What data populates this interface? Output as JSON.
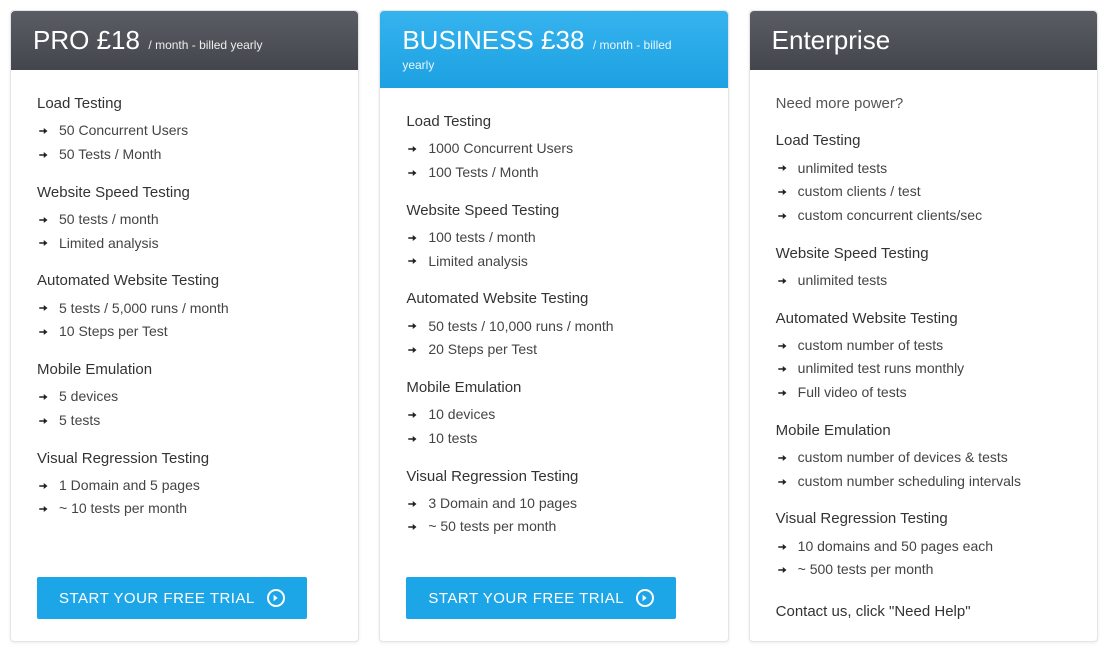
{
  "colors": {
    "header_dark_top": "#5a5d63",
    "header_dark_bottom": "#43464c",
    "header_blue_top": "#35b3ee",
    "header_blue_bottom": "#1da1e2",
    "button_bg": "#1ca6e8",
    "text_primary": "#333333",
    "text_muted": "#555555",
    "card_border": "#e5e5e5"
  },
  "cta_label": "START YOUR FREE TRIAL",
  "plans": [
    {
      "id": "pro",
      "title": "PRO £18",
      "subtitle": "/ month - billed yearly",
      "header_style": "dark",
      "has_cta": true,
      "sections": [
        {
          "title": "Load Testing",
          "items": [
            "50 Concurrent Users",
            "50 Tests / Month"
          ]
        },
        {
          "title": "Website Speed Testing",
          "items": [
            "50 tests / month",
            "Limited analysis"
          ]
        },
        {
          "title": "Automated Website Testing",
          "items": [
            "5 tests / 5,000 runs / month",
            "10 Steps per Test"
          ]
        },
        {
          "title": "Mobile Emulation",
          "items": [
            "5 devices",
            "5 tests"
          ]
        },
        {
          "title": "Visual Regression Testing",
          "items": [
            "1 Domain and 5 pages",
            "~ 10 tests per month"
          ]
        }
      ]
    },
    {
      "id": "business",
      "title": "BUSINESS £38",
      "subtitle": "/ month - billed yearly",
      "header_style": "blue",
      "has_cta": true,
      "sections": [
        {
          "title": "Load Testing",
          "items": [
            "1000 Concurrent Users",
            "100 Tests / Month"
          ]
        },
        {
          "title": "Website Speed Testing",
          "items": [
            "100 tests / month",
            "Limited analysis"
          ]
        },
        {
          "title": "Automated Website Testing",
          "items": [
            "50 tests / 10,000 runs / month",
            "20 Steps per Test"
          ]
        },
        {
          "title": "Mobile Emulation",
          "items": [
            "10 devices",
            "10 tests"
          ]
        },
        {
          "title": "Visual Regression Testing",
          "items": [
            "3 Domain and 10 pages",
            "~ 50 tests per month"
          ]
        }
      ]
    },
    {
      "id": "enterprise",
      "title": "Enterprise",
      "subtitle": "",
      "header_style": "dark",
      "has_cta": false,
      "tagline": "Need more power?",
      "contact_line": "Contact us, click \"Need Help\"",
      "sections": [
        {
          "title": "Load Testing",
          "items": [
            "unlimited tests",
            "custom clients / test",
            "custom concurrent clients/sec"
          ]
        },
        {
          "title": "Website Speed Testing",
          "items": [
            "unlimited tests"
          ]
        },
        {
          "title": "Automated Website Testing",
          "items": [
            "custom number of tests",
            "unlimited test runs monthly",
            "Full video of tests"
          ]
        },
        {
          "title": "Mobile Emulation",
          "items": [
            "custom number of devices & tests",
            "custom number scheduling intervals"
          ]
        },
        {
          "title": "Visual Regression Testing",
          "items": [
            "10 domains and 50 pages each",
            "~ 500 tests per month"
          ]
        }
      ]
    }
  ]
}
